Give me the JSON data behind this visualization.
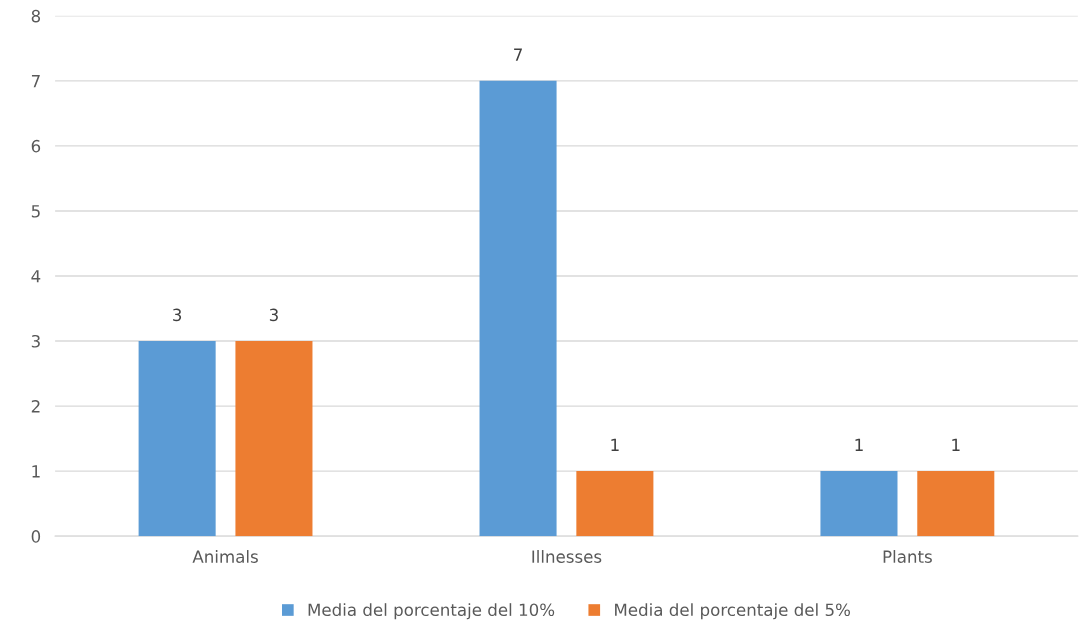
{
  "chart_data": {
    "type": "bar",
    "categories": [
      "Animals",
      "Illnesses",
      "Plants"
    ],
    "series": [
      {
        "name": "Media del porcentaje del 10%",
        "color": "#5b9bd5",
        "values": [
          3,
          7,
          1
        ]
      },
      {
        "name": "Media del porcentaje del 5%",
        "color": "#ed7d31",
        "values": [
          3,
          1,
          1
        ]
      }
    ],
    "ylim": [
      0,
      8
    ],
    "yticks": [
      0,
      1,
      2,
      3,
      4,
      5,
      6,
      7,
      8
    ],
    "grid": "y",
    "legend": "bottom",
    "data_labels": true
  }
}
